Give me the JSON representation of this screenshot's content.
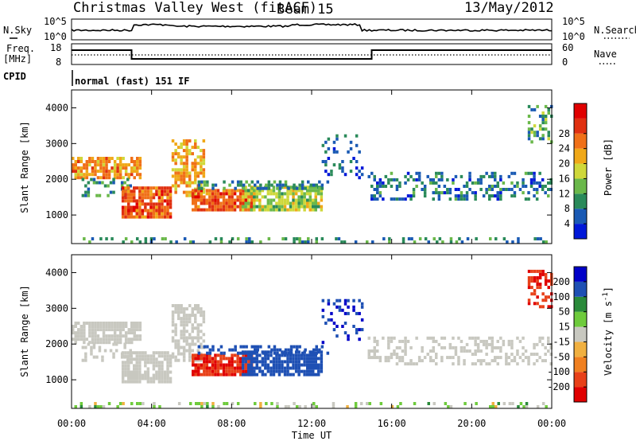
{
  "header": {
    "title": "Christmas Valley West (fitACF)",
    "beam": "Beam 15",
    "date": "13/May/2012"
  },
  "panels": {
    "nsky": {
      "label": "N.Sky",
      "ticks_left": [
        "10^5",
        "10^0"
      ],
      "ticks_right": [
        "10^5",
        "10^0"
      ],
      "right_label": "N.Search"
    },
    "freq": {
      "label_line1": "Freq.",
      "label_line2": "[MHz]",
      "ticks_left": [
        "18",
        "8"
      ],
      "ticks_right": [
        "60",
        "0"
      ],
      "right_label": "Nave"
    },
    "cpid": {
      "label": "CPID",
      "value": "normal (fast) 151 IF"
    }
  },
  "chart_data": [
    {
      "type": "heatmap",
      "quantity": "power",
      "ylabel": "Slant Range [km]",
      "ylim": [
        200,
        4500
      ],
      "yticks": [
        1000,
        2000,
        3000,
        4000
      ],
      "xlim_hours": [
        0,
        24
      ],
      "colorbar": {
        "label": "Power [dB]",
        "ticks": [
          4,
          8,
          12,
          16,
          20,
          24,
          28
        ],
        "colors": [
          "#0018d8",
          "#1a5ab4",
          "#2a8a5a",
          "#6ab84a",
          "#cfd83a",
          "#f0a818",
          "#f07018",
          "#e03010",
          "#e00000"
        ]
      }
    },
    {
      "type": "heatmap",
      "quantity": "velocity",
      "ylabel": "Slant Range [km]",
      "ylim": [
        200,
        4500
      ],
      "yticks": [
        1000,
        2000,
        3000,
        4000
      ],
      "xlim_hours": [
        0,
        24
      ],
      "xlabel": "Time UT",
      "xtick_labels": [
        "00:00",
        "04:00",
        "08:00",
        "12:00",
        "16:00",
        "20:00",
        "00:00"
      ],
      "colorbar": {
        "label": "Velocity [m s^-1]",
        "ticks": [
          "200",
          "100",
          "50",
          "15",
          "-15",
          "-50",
          "-100",
          "-200"
        ],
        "colors": [
          "#0000c8",
          "#1e50b4",
          "#2a8a3a",
          "#6ecb3c",
          "#c8c8c0",
          "#f0b040",
          "#f08020",
          "#e84018",
          "#e00000"
        ]
      }
    }
  ],
  "series_colors": {
    "trace": "#000000",
    "ground": "#b0b0a8"
  }
}
